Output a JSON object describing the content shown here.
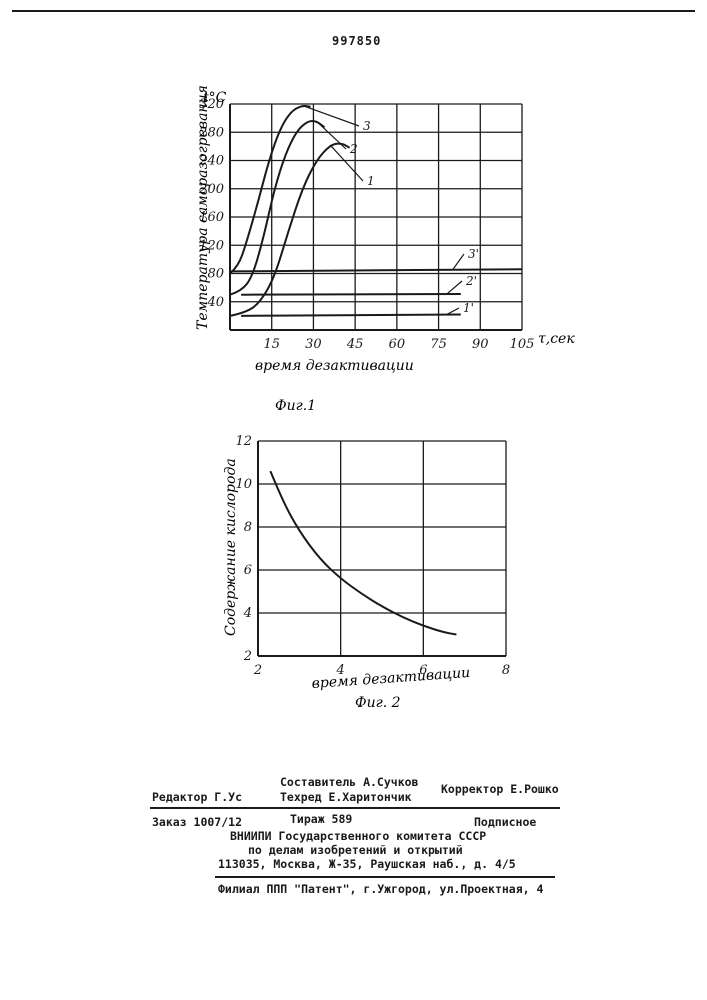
{
  "header": {
    "patent_number": "997850"
  },
  "figure1": {
    "caption": "Фиг.1",
    "xlabel": "время дезактивации",
    "xunit": "τ,сек",
    "ylabel": "Температура саморазогревания",
    "yunit": "t°C"
  },
  "figure2": {
    "caption": "Фиг. 2",
    "xlabel": "время дезактивации",
    "ylabel": "Содержание кислорода"
  },
  "chart_data": [
    {
      "type": "line",
      "title": "Фиг.1",
      "xlabel": "время дезактивации τ,сек",
      "ylabel": "Температура саморазогревания t°C",
      "xlim": [
        0,
        105
      ],
      "ylim": [
        0,
        320
      ],
      "x_ticks": [
        15,
        30,
        45,
        60,
        75,
        90,
        105
      ],
      "y_ticks": [
        40,
        80,
        120,
        160,
        200,
        240,
        280,
        320
      ],
      "grid": true,
      "series": [
        {
          "name": "1",
          "points": [
            [
              0,
              20
            ],
            [
              6,
              25
            ],
            [
              11,
              40
            ],
            [
              16,
              75
            ],
            [
              21,
              140
            ],
            [
              26,
              200
            ],
            [
              31,
              240
            ],
            [
              36,
              262
            ],
            [
              40,
              265
            ],
            [
              43,
              258
            ]
          ]
        },
        {
          "name": "2",
          "points": [
            [
              0,
              50
            ],
            [
              4,
              55
            ],
            [
              8,
              75
            ],
            [
              12,
              130
            ],
            [
              16,
              200
            ],
            [
              20,
              250
            ],
            [
              24,
              282
            ],
            [
              28,
              296
            ],
            [
              31,
              296
            ],
            [
              34,
              287
            ]
          ]
        },
        {
          "name": "3",
          "points": [
            [
              0,
              80
            ],
            [
              3,
              90
            ],
            [
              6,
              125
            ],
            [
              10,
              180
            ],
            [
              14,
              240
            ],
            [
              18,
              285
            ],
            [
              22,
              310
            ],
            [
              26,
              318
            ],
            [
              29,
              316
            ]
          ]
        },
        {
          "name": "3'",
          "points": [
            [
              0,
              83
            ],
            [
              105,
              86
            ]
          ]
        },
        {
          "name": "2'",
          "points": [
            [
              4,
              50
            ],
            [
              83,
              51
            ]
          ]
        },
        {
          "name": "1'",
          "points": [
            [
              4,
              20
            ],
            [
              83,
              22
            ]
          ]
        }
      ]
    },
    {
      "type": "line",
      "title": "Фиг. 2",
      "xlabel": "время дезактивации",
      "ylabel": "Содержание кислорода",
      "xlim": [
        2,
        8
      ],
      "ylim": [
        2,
        12
      ],
      "x_ticks": [
        2,
        4,
        6,
        8
      ],
      "y_ticks": [
        2,
        4,
        6,
        8,
        10,
        12
      ],
      "grid": true,
      "series": [
        {
          "name": "",
          "points": [
            [
              2.3,
              10.6
            ],
            [
              2.6,
              9.2
            ],
            [
              3,
              7.8
            ],
            [
              3.5,
              6.5
            ],
            [
              4,
              5.6
            ],
            [
              4.5,
              4.9
            ],
            [
              5,
              4.3
            ],
            [
              5.5,
              3.8
            ],
            [
              6,
              3.4
            ],
            [
              6.5,
              3.1
            ],
            [
              6.8,
              3.0
            ]
          ]
        }
      ]
    }
  ],
  "footer": {
    "editor": "Редактор Г.Ус",
    "compiler": "Составитель А.Сучков",
    "techred": "Техред Е.Харитончик",
    "corrector": "Корректор Е.Рошко",
    "order": "Заказ 1007/12",
    "circulation": "Тираж 589",
    "subscription": "Подписное",
    "org1": "ВНИИПИ Государственного комитета СССР",
    "org2": "по делам изобретений и открытий",
    "address": "113035, Москва, Ж-35, Раушская наб., д. 4/5",
    "branch": "Филиал ППП \"Патент\", г.Ужгород, ул.Проектная, 4"
  }
}
